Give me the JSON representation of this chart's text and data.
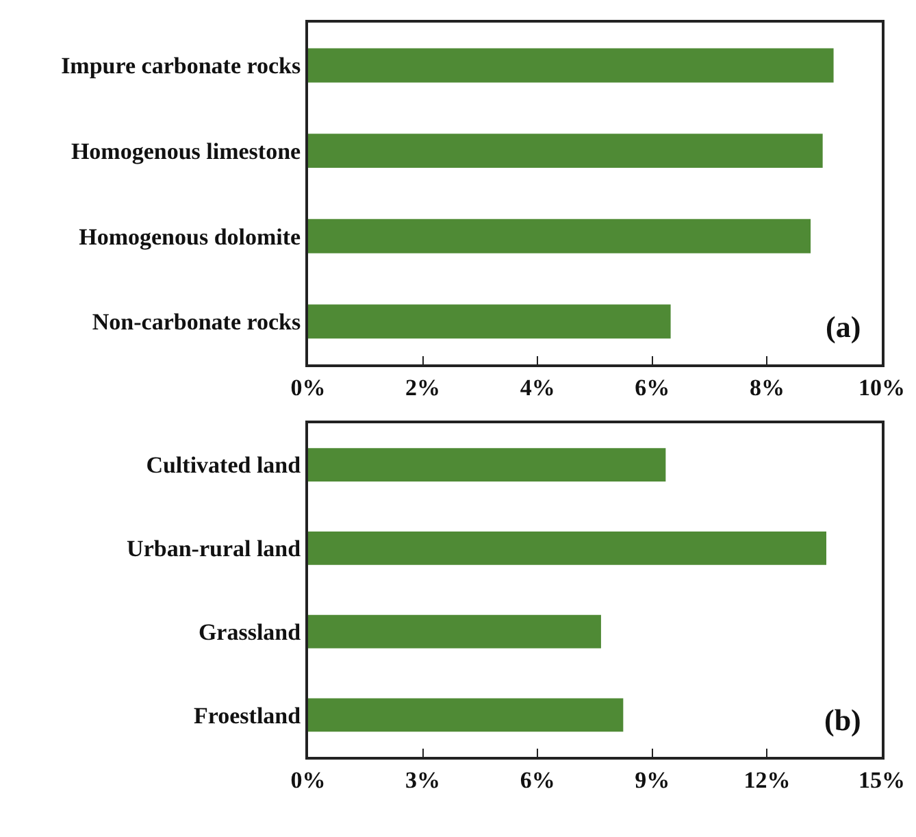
{
  "chart_data": [
    {
      "type": "bar",
      "orientation": "horizontal",
      "categories": [
        "Impure carbonate rocks",
        "Homogenous limestone",
        "Homogenous dolomite",
        "Non-carbonate rocks"
      ],
      "values": [
        9.16,
        8.97,
        8.76,
        6.32
      ],
      "color": "#4f8a35",
      "xlim": [
        0,
        10
      ],
      "xticks": [
        {
          "value": 0,
          "label": "0%"
        },
        {
          "value": 2,
          "label": "2%"
        },
        {
          "value": 4,
          "label": "4%"
        },
        {
          "value": 6,
          "label": "6%"
        },
        {
          "value": 8,
          "label": "8%"
        },
        {
          "value": 10,
          "label": "10%"
        }
      ],
      "annotations": [
        "(a)"
      ]
    },
    {
      "type": "bar",
      "orientation": "horizontal",
      "categories": [
        "Cultivated land",
        "Urban-rural land",
        "Grassland",
        "Froestland"
      ],
      "values": [
        9.35,
        13.55,
        7.66,
        8.24
      ],
      "color": "#4f8a35",
      "xlim": [
        0,
        15
      ],
      "xticks": [
        {
          "value": 0,
          "label": "0%"
        },
        {
          "value": 3,
          "label": "3%"
        },
        {
          "value": 6,
          "label": "6%"
        },
        {
          "value": 9,
          "label": "9%"
        },
        {
          "value": 12,
          "label": "12%"
        },
        {
          "value": 15,
          "label": "15%"
        }
      ],
      "annotations": [
        "(b)"
      ]
    }
  ]
}
